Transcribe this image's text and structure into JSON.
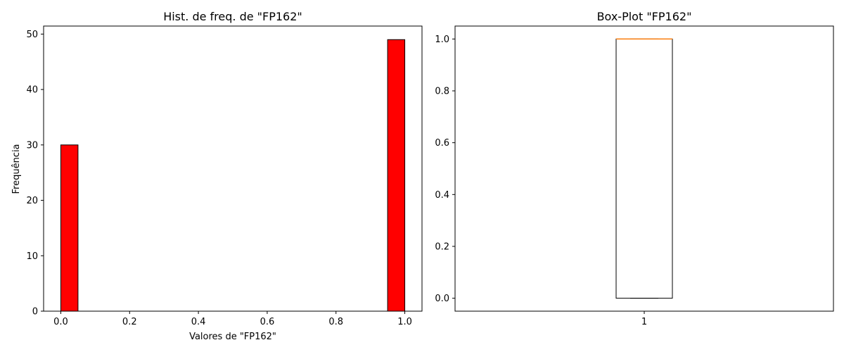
{
  "chart_data": [
    {
      "type": "bar",
      "title": "Hist. de freq. de \"FP162\"",
      "xlabel": "Valores de \"FP162\"",
      "ylabel": "Frequência",
      "xlim": [
        -0.05,
        1.05
      ],
      "ylim": [
        0,
        51.45
      ],
      "xticks": [
        "0.0",
        "0.2",
        "0.4",
        "0.6",
        "0.8",
        "1.0"
      ],
      "yticks": [
        "0",
        "10",
        "20",
        "30",
        "40",
        "50"
      ],
      "bins": [
        {
          "x0": 0.0,
          "x1": 0.05,
          "count": 30
        },
        {
          "x0": 0.95,
          "x1": 1.0,
          "count": 49
        }
      ],
      "bar_color": "#ff0000",
      "edge_color": "#000000",
      "grid": false
    },
    {
      "type": "box",
      "title": "Box-Plot \"FP162\"",
      "categories": [
        "1"
      ],
      "ylim": [
        -0.05,
        1.05
      ],
      "yticks": [
        "0.0",
        "0.2",
        "0.4",
        "0.6",
        "0.8",
        "1.0"
      ],
      "box": {
        "min": 0.0,
        "q1": 0.0,
        "median": 1.0,
        "q3": 1.0,
        "max": 1.0
      },
      "median_color": "#ff7f0e",
      "grid": false
    }
  ]
}
